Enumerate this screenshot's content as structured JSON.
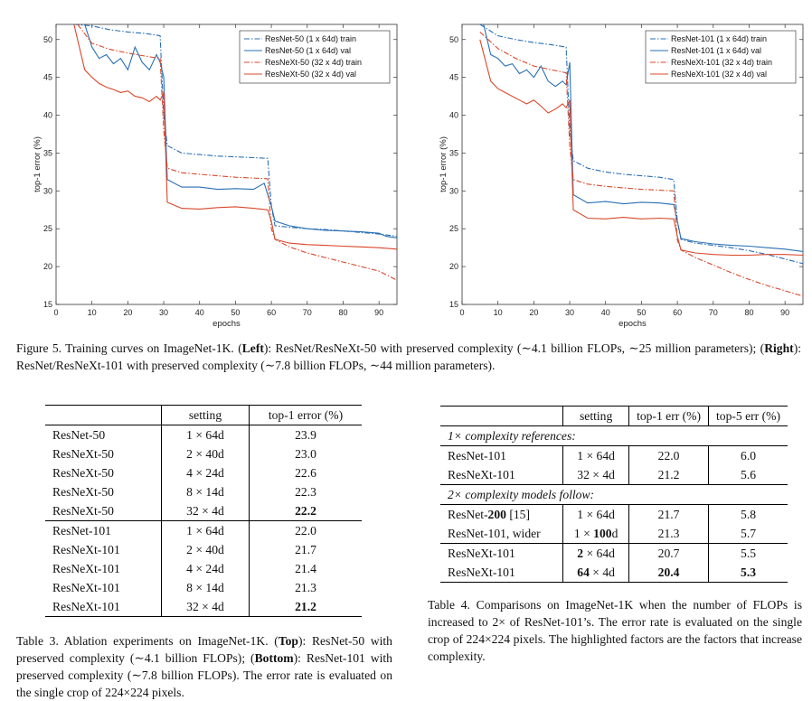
{
  "chart_data": [
    {
      "type": "line",
      "panel": "left",
      "xlabel": "epochs",
      "ylabel": "top-1 error (%)",
      "xlim": [
        0,
        95
      ],
      "ylim": [
        15,
        52
      ],
      "xticks": [
        0,
        10,
        20,
        30,
        40,
        50,
        60,
        70,
        80,
        90
      ],
      "yticks": [
        15,
        20,
        25,
        30,
        35,
        40,
        45,
        50
      ],
      "grid": false,
      "legend_position": "top-right",
      "series": [
        {
          "name": "ResNet-50 (1 x 64d) train",
          "color": "#2a6fb5",
          "style": "dashdot",
          "x": [
            5,
            10,
            15,
            20,
            25,
            29,
            30,
            31,
            35,
            40,
            45,
            50,
            55,
            59,
            60,
            61,
            65,
            70,
            75,
            80,
            85,
            90,
            95
          ],
          "y": [
            52,
            51.8,
            51.3,
            51,
            50.8,
            50.5,
            40,
            36,
            35,
            34.8,
            34.6,
            34.5,
            34.4,
            34.3,
            28,
            25.4,
            25.2,
            25,
            24.9,
            24.7,
            24.5,
            24.3,
            24
          ]
        },
        {
          "name": "ResNet-50 (1 x 64d) val",
          "color": "#2a6fb5",
          "style": "solid",
          "x": [
            8,
            10,
            12,
            14,
            16,
            18,
            20,
            22,
            24,
            26,
            28,
            29,
            30,
            31,
            35,
            40,
            45,
            50,
            55,
            58,
            60,
            61,
            65,
            70,
            75,
            80,
            85,
            90,
            92,
            95
          ],
          "y": [
            52,
            49,
            47.5,
            48,
            46.8,
            47.5,
            46,
            49,
            47,
            46,
            48,
            47,
            45,
            31.5,
            30.5,
            30.5,
            30.2,
            30.3,
            30.2,
            31,
            28,
            26,
            25.4,
            25,
            24.8,
            24.7,
            24.6,
            24.4,
            24,
            23.8
          ]
        },
        {
          "name": "ResNeXt-50 (32 x 4d) train",
          "color": "#d9482b",
          "style": "dashdot",
          "x": [
            6,
            10,
            15,
            20,
            25,
            29,
            30,
            31,
            35,
            40,
            45,
            50,
            55,
            59,
            60,
            61,
            65,
            70,
            75,
            80,
            85,
            90,
            95
          ],
          "y": [
            52,
            49.5,
            48.7,
            48.2,
            47.8,
            47.5,
            38,
            33,
            32.4,
            32.2,
            32,
            31.8,
            31.7,
            31.6,
            25,
            23.6,
            22.6,
            21.8,
            21.2,
            20.6,
            20,
            19.4,
            18.2
          ]
        },
        {
          "name": "ResNeXt-50 (32 x 4d) val",
          "color": "#d9482b",
          "style": "solid",
          "x": [
            5,
            8,
            10,
            12,
            14,
            16,
            18,
            20,
            22,
            24,
            26,
            28,
            29,
            30,
            31,
            35,
            40,
            45,
            50,
            55,
            59,
            60,
            61,
            65,
            70,
            75,
            80,
            85,
            90,
            95
          ],
          "y": [
            52,
            46,
            45,
            44.2,
            43.7,
            43.4,
            43,
            43.2,
            42.5,
            42.3,
            41.8,
            42.5,
            42,
            43,
            28.5,
            27.7,
            27.6,
            27.8,
            27.9,
            27.7,
            27.5,
            26,
            23.6,
            23.1,
            22.9,
            22.8,
            22.7,
            22.6,
            22.5,
            22.3
          ]
        }
      ]
    },
    {
      "type": "line",
      "panel": "right",
      "xlabel": "epochs",
      "ylabel": "top-1 error (%)",
      "xlim": [
        0,
        95
      ],
      "ylim": [
        15,
        52
      ],
      "xticks": [
        0,
        10,
        20,
        30,
        40,
        50,
        60,
        70,
        80,
        90
      ],
      "yticks": [
        15,
        20,
        25,
        30,
        35,
        40,
        45,
        50
      ],
      "grid": false,
      "legend_position": "top-right",
      "series": [
        {
          "name": "ResNet-101 (1 x 64d) train",
          "color": "#2a6fb5",
          "style": "dashdot",
          "x": [
            5,
            10,
            15,
            20,
            25,
            29,
            30,
            31,
            35,
            40,
            45,
            50,
            55,
            59,
            60,
            61,
            65,
            70,
            75,
            80,
            85,
            90,
            95
          ],
          "y": [
            52,
            50.5,
            50,
            49.6,
            49.3,
            49,
            38,
            34,
            33,
            32.5,
            32.2,
            32,
            31.8,
            31.5,
            26,
            23.6,
            23.1,
            22.8,
            22.5,
            22.1,
            21.6,
            21,
            20.4
          ]
        },
        {
          "name": "ResNet-101 (1 x 64d) val",
          "color": "#2a6fb5",
          "style": "solid",
          "x": [
            6,
            8,
            10,
            12,
            14,
            16,
            18,
            20,
            22,
            24,
            26,
            28,
            29,
            30,
            31,
            35,
            40,
            45,
            50,
            55,
            59,
            60,
            61,
            65,
            70,
            75,
            80,
            85,
            90,
            95
          ],
          "y": [
            52,
            48,
            47.5,
            46.5,
            46.8,
            45.5,
            46,
            45,
            46.5,
            44.5,
            43.8,
            44.5,
            44,
            47,
            29.5,
            28.4,
            28.6,
            28.3,
            28.5,
            28.4,
            28.2,
            26,
            23.7,
            23.3,
            23,
            22.8,
            22.7,
            22.5,
            22.3,
            22
          ]
        },
        {
          "name": "ResNeXt-101 (32 x 4d) train",
          "color": "#d9482b",
          "style": "dashdot",
          "x": [
            5,
            10,
            15,
            20,
            25,
            29,
            30,
            31,
            35,
            40,
            45,
            50,
            55,
            59,
            60,
            61,
            65,
            70,
            75,
            80,
            85,
            90,
            95
          ],
          "y": [
            51,
            48.8,
            47.5,
            46.5,
            46,
            45.6,
            36,
            31.5,
            30.9,
            30.6,
            30.4,
            30.2,
            30.1,
            30,
            23.5,
            22.2,
            21.2,
            20.2,
            19.2,
            18.3,
            17.5,
            16.8,
            16.1
          ]
        },
        {
          "name": "ResNeXt-101 (32 x 4d) val",
          "color": "#d9482b",
          "style": "solid",
          "x": [
            5,
            8,
            10,
            12,
            14,
            16,
            18,
            20,
            22,
            24,
            26,
            28,
            29,
            30,
            31,
            35,
            40,
            45,
            50,
            55,
            59,
            60,
            61,
            65,
            70,
            75,
            80,
            85,
            90,
            95
          ],
          "y": [
            50,
            44.5,
            43.5,
            43,
            42.5,
            42,
            41.5,
            42,
            41.2,
            40.3,
            40.8,
            41.5,
            41,
            42,
            27.5,
            26.4,
            26.3,
            26.5,
            26.3,
            26.4,
            26.3,
            24,
            22.2,
            21.8,
            21.6,
            21.5,
            21.5,
            21.6,
            21.6,
            21.5
          ]
        }
      ]
    }
  ],
  "figure5": {
    "label": "Figure 5.",
    "caption_1": " Training curves on ImageNet-1K. (",
    "left": "Left",
    "caption_2": "): ResNet/ResNeXt-50 with preserved complexity (∼4.1 billion FLOPs, ∼25 million parameters); (",
    "right": "Right",
    "caption_3": "): ResNet/ResNeXt-101 with preserved complexity (∼7.8 billion FLOPs, ∼44 million parameters)."
  },
  "table3": {
    "headers": [
      "",
      "setting",
      "top-1 error (%)"
    ],
    "top_rows": [
      {
        "model": "ResNet-50",
        "setting": "1 × 64d",
        "error": "23.9"
      },
      {
        "model": "ResNeXt-50",
        "setting": "2 × 40d",
        "error": "23.0"
      },
      {
        "model": "ResNeXt-50",
        "setting": "4 × 24d",
        "error": "22.6"
      },
      {
        "model": "ResNeXt-50",
        "setting": "8 × 14d",
        "error": "22.3"
      },
      {
        "model": "ResNeXt-50",
        "setting": "32 × 4d",
        "error": "22.2"
      }
    ],
    "bottom_rows": [
      {
        "model": "ResNet-101",
        "setting": "1 × 64d",
        "error": "22.0"
      },
      {
        "model": "ResNeXt-101",
        "setting": "2 × 40d",
        "error": "21.7"
      },
      {
        "model": "ResNeXt-101",
        "setting": "4 × 24d",
        "error": "21.4"
      },
      {
        "model": "ResNeXt-101",
        "setting": "8 × 14d",
        "error": "21.3"
      },
      {
        "model": "ResNeXt-101",
        "setting": "32 × 4d",
        "error": "21.2"
      }
    ],
    "caption_label": "Table 3.",
    "caption_1": " Ablation experiments on ImageNet-1K. (",
    "top": "Top",
    "caption_2": "): ResNet-50 with preserved complexity (∼4.1 billion FLOPs); (",
    "bottom": "Bottom",
    "caption_3": "): ResNet-101 with preserved complexity (∼7.8 billion FLOPs). The error rate is evaluated on the single crop of 224×224 pixels."
  },
  "table4": {
    "headers": [
      "",
      "setting",
      "top-1 err (%)",
      "top-5 err (%)"
    ],
    "section1": "1× complexity references:",
    "section1_rows": [
      {
        "model": "ResNet-101",
        "setting": "1 × 64d",
        "top1": "22.0",
        "top5": "6.0"
      },
      {
        "model": "ResNeXt-101",
        "setting": "32 × 4d",
        "top1": "21.2",
        "top5": "5.6"
      }
    ],
    "section2": "2× complexity models follow:",
    "r1_model_pre": "ResNet-",
    "r1_model_bold": "200",
    "r1_model_post": " [15]",
    "r1_setting": "1 × 64d",
    "r1_top1": "21.7",
    "r1_top5": "5.8",
    "r2_model": "ResNet-101, wider",
    "r2_setting_pre": "1 × ",
    "r2_setting_bold": "100",
    "r2_setting_post": "d",
    "r2_top1": "21.3",
    "r2_top5": "5.7",
    "r3_model": "ResNeXt-101",
    "r3_setting_bold": "2",
    "r3_setting_post": " × 64d",
    "r3_top1": "20.7",
    "r3_top5": "5.5",
    "r4_model": "ResNeXt-101",
    "r4_setting_bold": "64",
    "r4_setting_post": " × 4d",
    "r4_top1": "20.4",
    "r4_top5": "5.3",
    "caption": "Table 4. Comparisons on ImageNet-1K when the number of FLOPs is increased to 2× of ResNet-101’s. The error rate is evaluated on the single crop of 224×224 pixels. The highlighted factors are the factors that increase complexity."
  }
}
